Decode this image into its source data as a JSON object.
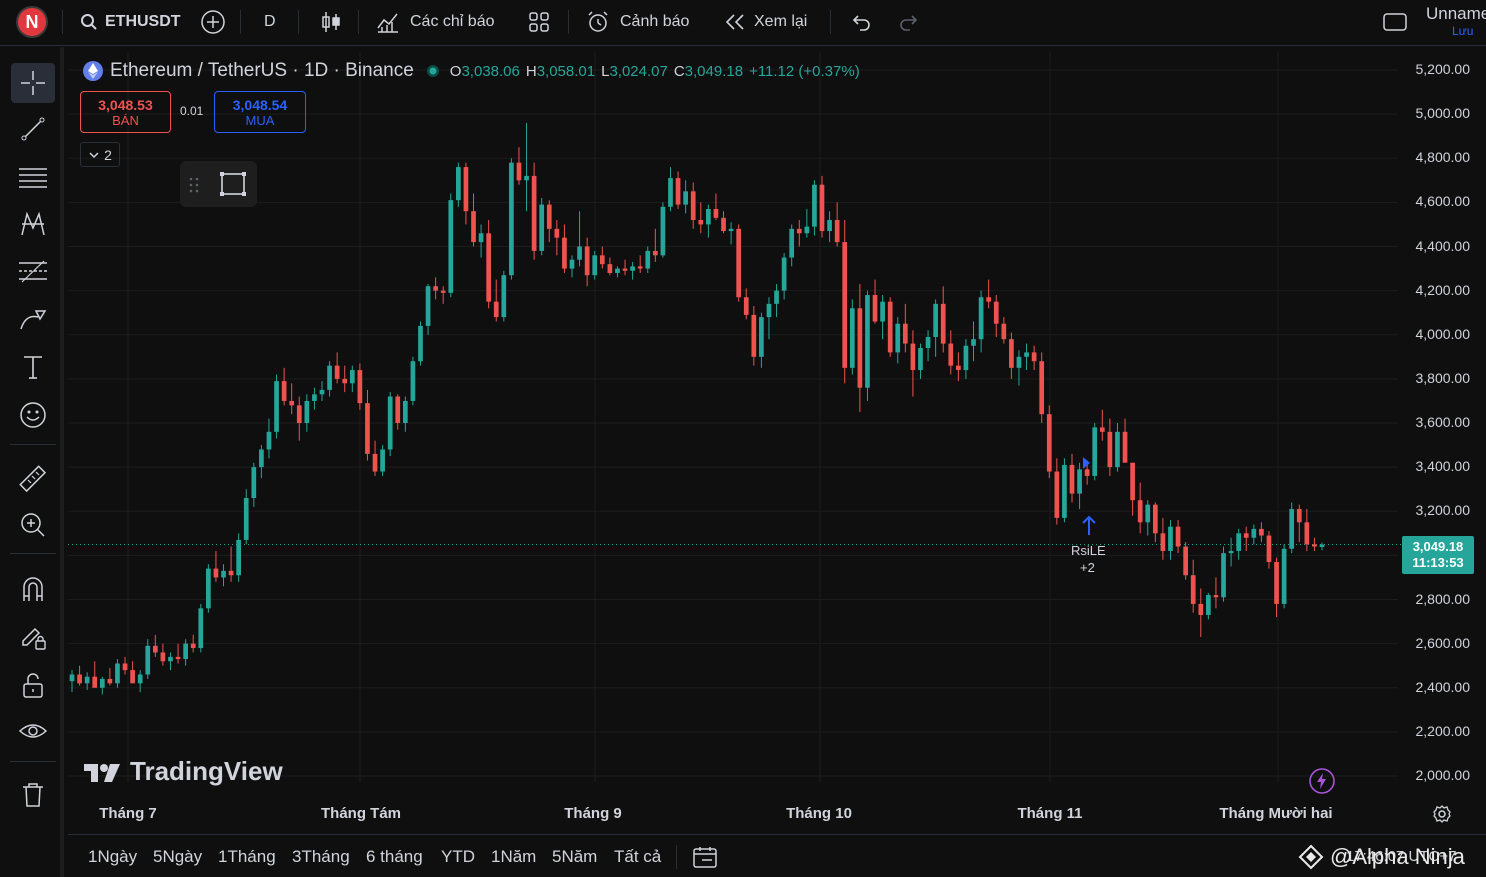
{
  "topbar": {
    "avatar_letter": "N",
    "symbol": "ETHUSDT",
    "interval": "D",
    "indicators_label": "Các chỉ báo",
    "alerts_label": "Cảnh báo",
    "replay_label": "Xem lại",
    "layout_name": "Unnamed",
    "save_label": "Lưu"
  },
  "legend": {
    "title": "Ethereum / TetherUS · 1D · Binance",
    "o_key": "O",
    "o_val": "3,038.06",
    "h_key": "H",
    "h_val": "3,058.01",
    "l_key": "L",
    "l_val": "3,024.07",
    "c_key": "C",
    "c_val": "3,049.18",
    "change": "+11.12 (+0.37%)"
  },
  "trade": {
    "sell_price": "3,048.53",
    "sell_label": "BÁN",
    "spread": "0.01",
    "buy_price": "3,048.54",
    "buy_label": "MUA",
    "collapse_count": "2"
  },
  "price_axis": {
    "labels": [
      "5,200.00",
      "5,000.00",
      "4,800.00",
      "4,600.00",
      "4,400.00",
      "4,200.00",
      "4,000.00",
      "3,800.00",
      "3,600.00",
      "3,400.00",
      "3,200.00",
      "2,800.00",
      "2,600.00",
      "2,400.00",
      "2,200.00",
      "2,000.00"
    ],
    "current_price": "3,049.18",
    "countdown": "11:13:53"
  },
  "time_axis": {
    "labels": [
      "Tháng 7",
      "Tháng Tám",
      "Tháng 9",
      "Tháng 10",
      "Tháng 11",
      "Tháng Mười hai"
    ]
  },
  "signal": {
    "label": "RsiLE",
    "count": "+2"
  },
  "watermark": "TradingView",
  "bottombar": {
    "ranges": [
      "1Ngày",
      "5Ngày",
      "1Tháng",
      "3Tháng",
      "6 tháng",
      "YTD",
      "1Năm",
      "5Năm",
      "Tất cả"
    ],
    "time_text": "17:46:07 UTC+7",
    "credit": "@Alpha Ninja"
  },
  "colors": {
    "up": "#26a69a",
    "down": "#ef5350",
    "accent": "#2962ff"
  },
  "chart_data": {
    "type": "candlestick",
    "ylim": [
      1950,
      5300
    ],
    "candles": [
      [
        2430,
        2480,
        2380,
        2460
      ],
      [
        2460,
        2500,
        2410,
        2420
      ],
      [
        2420,
        2470,
        2390,
        2450
      ],
      [
        2450,
        2520,
        2430,
        2400
      ],
      [
        2400,
        2450,
        2370,
        2440
      ],
      [
        2440,
        2490,
        2410,
        2420
      ],
      [
        2420,
        2530,
        2400,
        2510
      ],
      [
        2510,
        2540,
        2460,
        2480
      ],
      [
        2480,
        2520,
        2440,
        2420
      ],
      [
        2420,
        2480,
        2380,
        2460
      ],
      [
        2460,
        2620,
        2440,
        2590
      ],
      [
        2590,
        2640,
        2540,
        2560
      ],
      [
        2560,
        2600,
        2500,
        2520
      ],
      [
        2520,
        2560,
        2480,
        2540
      ],
      [
        2540,
        2600,
        2510,
        2530
      ],
      [
        2530,
        2620,
        2500,
        2600
      ],
      [
        2600,
        2640,
        2560,
        2580
      ],
      [
        2580,
        2780,
        2560,
        2760
      ],
      [
        2760,
        2960,
        2740,
        2940
      ],
      [
        2940,
        3020,
        2880,
        2900
      ],
      [
        2900,
        2960,
        2860,
        2930
      ],
      [
        2930,
        3040,
        2880,
        2910
      ],
      [
        2910,
        3100,
        2880,
        3070
      ],
      [
        3070,
        3300,
        3050,
        3260
      ],
      [
        3260,
        3420,
        3220,
        3400
      ],
      [
        3400,
        3500,
        3350,
        3480
      ],
      [
        3480,
        3620,
        3440,
        3560
      ],
      [
        3560,
        3820,
        3530,
        3790
      ],
      [
        3790,
        3850,
        3680,
        3700
      ],
      [
        3700,
        3780,
        3640,
        3680
      ],
      [
        3680,
        3720,
        3520,
        3600
      ],
      [
        3600,
        3730,
        3560,
        3700
      ],
      [
        3700,
        3760,
        3660,
        3730
      ],
      [
        3730,
        3790,
        3700,
        3750
      ],
      [
        3750,
        3880,
        3720,
        3860
      ],
      [
        3860,
        3920,
        3780,
        3800
      ],
      [
        3800,
        3860,
        3740,
        3780
      ],
      [
        3780,
        3860,
        3740,
        3840
      ],
      [
        3840,
        3870,
        3660,
        3690
      ],
      [
        3690,
        3750,
        3430,
        3460
      ],
      [
        3460,
        3520,
        3360,
        3380
      ],
      [
        3380,
        3500,
        3360,
        3480
      ],
      [
        3480,
        3740,
        3450,
        3720
      ],
      [
        3720,
        3730,
        3570,
        3600
      ],
      [
        3600,
        3720,
        3560,
        3700
      ],
      [
        3700,
        3900,
        3680,
        3880
      ],
      [
        3880,
        4060,
        3860,
        4040
      ],
      [
        4040,
        4230,
        4000,
        4220
      ],
      [
        4220,
        4260,
        4160,
        4200
      ],
      [
        4200,
        4220,
        4140,
        4190
      ],
      [
        4190,
        4640,
        4170,
        4610
      ],
      [
        4610,
        4780,
        4580,
        4760
      ],
      [
        4760,
        4780,
        4500,
        4560
      ],
      [
        4560,
        4640,
        4400,
        4420
      ],
      [
        4420,
        4500,
        4350,
        4460
      ],
      [
        4460,
        4520,
        4120,
        4150
      ],
      [
        4150,
        4250,
        4060,
        4080
      ],
      [
        4080,
        4290,
        4060,
        4270
      ],
      [
        4270,
        4800,
        4250,
        4780
      ],
      [
        4780,
        4850,
        4680,
        4700
      ],
      [
        4700,
        4960,
        4560,
        4720
      ],
      [
        4720,
        4780,
        4340,
        4380
      ],
      [
        4380,
        4620,
        4360,
        4590
      ],
      [
        4590,
        4610,
        4420,
        4480
      ],
      [
        4480,
        4520,
        4360,
        4440
      ],
      [
        4440,
        4500,
        4280,
        4300
      ],
      [
        4300,
        4360,
        4260,
        4340
      ],
      [
        4340,
        4560,
        4310,
        4400
      ],
      [
        4400,
        4440,
        4220,
        4270
      ],
      [
        4270,
        4380,
        4250,
        4360
      ],
      [
        4360,
        4400,
        4300,
        4320
      ],
      [
        4320,
        4350,
        4270,
        4280
      ],
      [
        4280,
        4310,
        4260,
        4300
      ],
      [
        4300,
        4340,
        4270,
        4290
      ],
      [
        4290,
        4330,
        4250,
        4310
      ],
      [
        4310,
        4360,
        4280,
        4300
      ],
      [
        4300,
        4400,
        4280,
        4380
      ],
      [
        4380,
        4480,
        4330,
        4360
      ],
      [
        4360,
        4600,
        4350,
        4580
      ],
      [
        4580,
        4760,
        4560,
        4710
      ],
      [
        4710,
        4740,
        4570,
        4590
      ],
      [
        4590,
        4700,
        4550,
        4650
      ],
      [
        4650,
        4690,
        4480,
        4520
      ],
      [
        4520,
        4600,
        4460,
        4500
      ],
      [
        4500,
        4590,
        4440,
        4570
      ],
      [
        4570,
        4640,
        4520,
        4530
      ],
      [
        4530,
        4560,
        4460,
        4470
      ],
      [
        4470,
        4510,
        4410,
        4480
      ],
      [
        4480,
        4500,
        4150,
        4170
      ],
      [
        4170,
        4210,
        4070,
        4090
      ],
      [
        4090,
        4130,
        3860,
        3900
      ],
      [
        3900,
        4100,
        3850,
        4080
      ],
      [
        4080,
        4170,
        3980,
        4140
      ],
      [
        4140,
        4230,
        4080,
        4200
      ],
      [
        4200,
        4370,
        4160,
        4350
      ],
      [
        4350,
        4500,
        4310,
        4480
      ],
      [
        4480,
        4520,
        4400,
        4460
      ],
      [
        4460,
        4570,
        4440,
        4490
      ],
      [
        4490,
        4700,
        4450,
        4680
      ],
      [
        4680,
        4720,
        4440,
        4470
      ],
      [
        4470,
        4560,
        4420,
        4520
      ],
      [
        4520,
        4600,
        4400,
        4420
      ],
      [
        4420,
        4520,
        3780,
        3850
      ],
      [
        3850,
        4160,
        3820,
        4120
      ],
      [
        4120,
        4230,
        3650,
        3760
      ],
      [
        3760,
        4200,
        3700,
        4180
      ],
      [
        4180,
        4250,
        4050,
        4060
      ],
      [
        4060,
        4180,
        3980,
        4150
      ],
      [
        4150,
        4170,
        3900,
        3920
      ],
      [
        3920,
        4080,
        3870,
        4050
      ],
      [
        4050,
        4140,
        3920,
        3960
      ],
      [
        3960,
        4020,
        3720,
        3840
      ],
      [
        3840,
        3960,
        3800,
        3940
      ],
      [
        3940,
        4020,
        3880,
        3990
      ],
      [
        3990,
        4160,
        3900,
        4140
      ],
      [
        4140,
        4220,
        3920,
        3960
      ],
      [
        3960,
        4020,
        3820,
        3860
      ],
      [
        3860,
        3920,
        3790,
        3840
      ],
      [
        3840,
        3980,
        3800,
        3950
      ],
      [
        3950,
        4060,
        3880,
        3980
      ],
      [
        3980,
        4200,
        3920,
        4170
      ],
      [
        4170,
        4250,
        4120,
        4150
      ],
      [
        4150,
        4180,
        3990,
        4050
      ],
      [
        4050,
        4080,
        3960,
        3980
      ],
      [
        3980,
        4010,
        3800,
        3850
      ],
      [
        3850,
        3930,
        3770,
        3900
      ],
      [
        3900,
        3960,
        3840,
        3920
      ],
      [
        3920,
        3950,
        3840,
        3880
      ],
      [
        3880,
        3920,
        3600,
        3640
      ],
      [
        3640,
        3680,
        3350,
        3380
      ],
      [
        3380,
        3440,
        3140,
        3170
      ],
      [
        3170,
        3440,
        3150,
        3410
      ],
      [
        3410,
        3460,
        3240,
        3280
      ],
      [
        3280,
        3420,
        3210,
        3390
      ],
      [
        3390,
        3430,
        3320,
        3360
      ],
      [
        3360,
        3600,
        3340,
        3580
      ],
      [
        3580,
        3660,
        3520,
        3560
      ],
      [
        3560,
        3620,
        3360,
        3400
      ],
      [
        3400,
        3600,
        3380,
        3560
      ],
      [
        3560,
        3620,
        3450,
        3420
      ],
      [
        3420,
        3420,
        3180,
        3250
      ],
      [
        3250,
        3330,
        3100,
        3150
      ],
      [
        3150,
        3250,
        3090,
        3230
      ],
      [
        3230,
        3240,
        3060,
        3100
      ],
      [
        3100,
        3170,
        2980,
        3020
      ],
      [
        3020,
        3160,
        2980,
        3130
      ],
      [
        3130,
        3160,
        3010,
        3040
      ],
      [
        3040,
        3060,
        2890,
        2910
      ],
      [
        2910,
        2980,
        2740,
        2780
      ],
      [
        2780,
        2850,
        2630,
        2730
      ],
      [
        2730,
        2830,
        2710,
        2820
      ],
      [
        2820,
        2900,
        2760,
        2810
      ],
      [
        2810,
        3040,
        2790,
        3010
      ],
      [
        3010,
        3080,
        2950,
        3020
      ],
      [
        3020,
        3120,
        2980,
        3100
      ],
      [
        3100,
        3130,
        3020,
        3080
      ],
      [
        3080,
        3140,
        3050,
        3120
      ],
      [
        3120,
        3150,
        3060,
        3090
      ],
      [
        3090,
        3110,
        2940,
        2970
      ],
      [
        2970,
        2990,
        2720,
        2780
      ],
      [
        2780,
        3050,
        2760,
        3030
      ],
      [
        3030,
        3240,
        3010,
        3210
      ],
      [
        3210,
        3230,
        3060,
        3150
      ],
      [
        3150,
        3210,
        3020,
        3050
      ],
      [
        3050,
        3080,
        3020,
        3040
      ],
      [
        3038.06,
        3058.01,
        3024.07,
        3049.18
      ]
    ]
  }
}
